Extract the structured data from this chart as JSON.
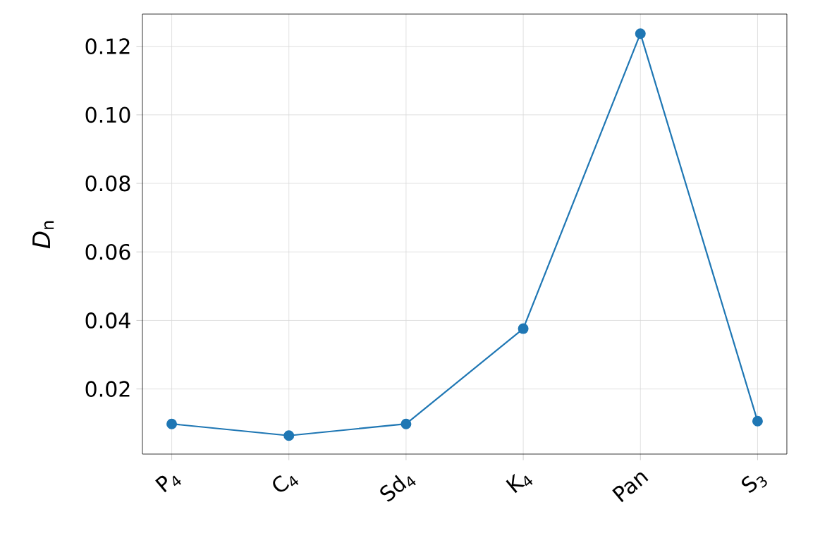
{
  "chart_data": {
    "type": "line",
    "ylabel": "*D*$_{n}$",
    "categories": [
      "P$_{4}$",
      "C$_{4}$",
      "Sd$_{4}$",
      "K$_{4}$",
      "Pan",
      "S$_{3}$"
    ],
    "series": [
      {
        "color": "#1f77b4",
        "values": [
          0.0098,
          0.0064,
          0.0098,
          0.0376,
          0.1237,
          0.0106
        ]
      }
    ],
    "ylim": [
      0.001,
      0.1294
    ],
    "yticks": [
      {
        "value": 0.02,
        "label": "0.02"
      },
      {
        "value": 0.04,
        "label": "0.04"
      },
      {
        "value": 0.06,
        "label": "0.06"
      },
      {
        "value": 0.08,
        "label": "0.08"
      },
      {
        "value": 0.1,
        "label": "0.10"
      },
      {
        "value": 0.12,
        "label": "0.12"
      }
    ],
    "grid": true,
    "marker": "circle",
    "line_style": "solid"
  }
}
